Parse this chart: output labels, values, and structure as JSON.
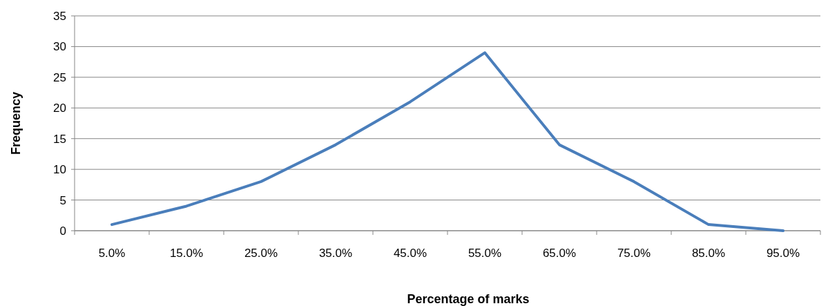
{
  "chart_data": {
    "type": "line",
    "xlabel": "Percentage of marks",
    "ylabel": "Frequency",
    "categories": [
      "5.0%",
      "15.0%",
      "25.0%",
      "35.0%",
      "45.0%",
      "55.0%",
      "65.0%",
      "75.0%",
      "85.0%",
      "95.0%"
    ],
    "series": [
      {
        "color": "#4a7ebb",
        "values": [
          1,
          4,
          8,
          14,
          21,
          29,
          14,
          8,
          1,
          0
        ]
      }
    ],
    "ylim": [
      0,
      35
    ],
    "yticks": [
      0,
      5,
      10,
      15,
      20,
      25,
      30,
      35
    ],
    "grid": "y",
    "marker": "none",
    "line_style": "solid"
  }
}
